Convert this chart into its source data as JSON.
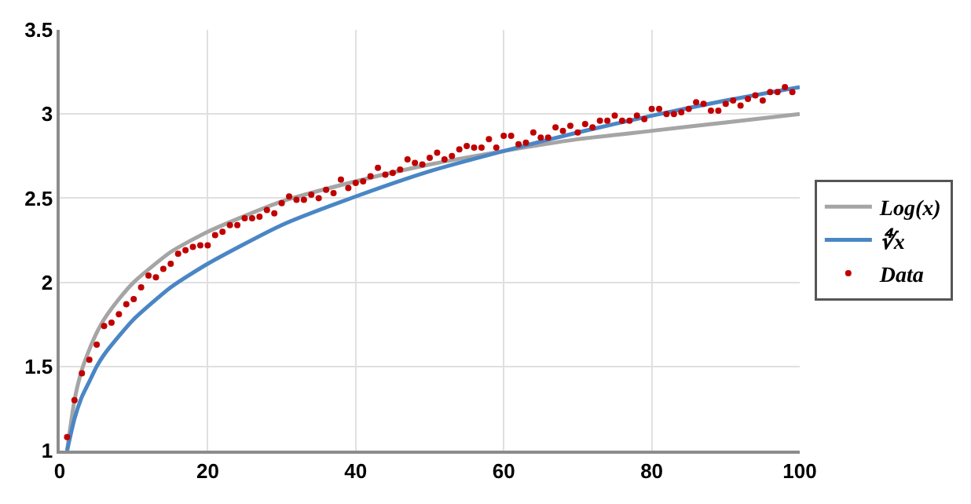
{
  "chart_data": {
    "type": "line",
    "series": [
      {
        "name": "Log(x)",
        "color": "#a5a5a5",
        "marker": "none",
        "line_style": "solid",
        "x": [
          1,
          2,
          3,
          4,
          5,
          6,
          8,
          10,
          15,
          20,
          30,
          40,
          50,
          60,
          70,
          80,
          90,
          100
        ],
        "values": [
          1,
          1.3,
          1.48,
          1.6,
          1.7,
          1.78,
          1.9,
          2.0,
          2.18,
          2.3,
          2.48,
          2.6,
          2.7,
          2.78,
          2.85,
          2.9,
          2.95,
          3.0
        ]
      },
      {
        "name": "∜x",
        "color": "#4a86c5",
        "marker": "none",
        "line_style": "solid",
        "x": [
          1,
          2,
          3,
          4,
          5,
          6,
          8,
          10,
          15,
          20,
          30,
          40,
          50,
          60,
          70,
          80,
          90,
          100
        ],
        "values": [
          1,
          1.19,
          1.32,
          1.41,
          1.5,
          1.57,
          1.68,
          1.78,
          1.97,
          2.11,
          2.34,
          2.51,
          2.66,
          2.78,
          2.89,
          2.99,
          3.08,
          3.16
        ]
      },
      {
        "name": "Data",
        "type": "scatter",
        "color": "#c00000",
        "marker": "circle",
        "x": [
          1,
          2,
          3,
          4,
          5,
          6,
          7,
          8,
          9,
          10,
          11,
          12,
          13,
          14,
          15,
          16,
          17,
          18,
          19,
          20,
          21,
          22,
          23,
          24,
          25,
          26,
          27,
          28,
          29,
          30,
          31,
          32,
          33,
          34,
          35,
          36,
          37,
          38,
          39,
          40,
          41,
          42,
          43,
          44,
          45,
          46,
          47,
          48,
          49,
          50,
          51,
          52,
          53,
          54,
          55,
          56,
          57,
          58,
          59,
          60,
          61,
          62,
          63,
          64,
          65,
          66,
          67,
          68,
          69,
          70,
          71,
          72,
          73,
          74,
          75,
          76,
          77,
          78,
          79,
          80,
          81,
          82,
          83,
          84,
          85,
          86,
          87,
          88,
          89,
          90,
          91,
          92,
          93,
          94,
          95,
          96,
          97,
          98,
          99
        ],
        "values": [
          1.08,
          1.3,
          1.46,
          1.54,
          1.63,
          1.74,
          1.76,
          1.81,
          1.87,
          1.9,
          1.97,
          2.04,
          2.03,
          2.08,
          2.11,
          2.17,
          2.19,
          2.21,
          2.22,
          2.22,
          2.28,
          2.3,
          2.34,
          2.34,
          2.38,
          2.38,
          2.39,
          2.43,
          2.41,
          2.47,
          2.51,
          2.49,
          2.49,
          2.52,
          2.5,
          2.55,
          2.53,
          2.61,
          2.56,
          2.59,
          2.6,
          2.63,
          2.68,
          2.64,
          2.65,
          2.67,
          2.73,
          2.71,
          2.7,
          2.74,
          2.77,
          2.73,
          2.75,
          2.79,
          2.81,
          2.8,
          2.8,
          2.85,
          2.8,
          2.87,
          2.87,
          2.82,
          2.83,
          2.89,
          2.86,
          2.86,
          2.92,
          2.9,
          2.93,
          2.89,
          2.94,
          2.92,
          2.96,
          2.96,
          2.99,
          2.96,
          2.96,
          2.99,
          2.97,
          3.03,
          3.03,
          3.0,
          3.0,
          3.01,
          3.03,
          3.07,
          3.06,
          3.02,
          3.02,
          3.06,
          3.08,
          3.05,
          3.09,
          3.11,
          3.08,
          3.13,
          3.13,
          3.16,
          3.13
        ]
      }
    ],
    "xlim": [
      0,
      100
    ],
    "xticks": [
      0,
      20,
      40,
      60,
      80,
      100
    ],
    "ylim": [
      1,
      3.5
    ],
    "yticks": [
      1,
      1.5,
      2,
      2.5,
      3,
      3.5
    ],
    "grid": true,
    "legend": "right"
  }
}
